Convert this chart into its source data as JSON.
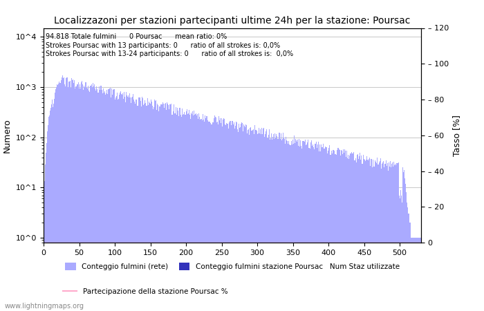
{
  "title": "Localizzazoni per stazioni partecipanti ultime 24h per la stazione: Poursac",
  "annotation_line1": "94.818 Totale fulmini      0 Poursac      mean ratio: 0%",
  "annotation_line2": "Strokes Poursac with 13 participants: 0      ratio of all strokes is: 0,0%",
  "annotation_line3": "Strokes Poursac with 13-24 participants: 0      ratio of all strokes is:  0,0%",
  "ylabel_left": "Numero",
  "ylabel_right": "Tasso [%]",
  "xlim": [
    0,
    530
  ],
  "ylim_right": [
    0,
    120
  ],
  "bar_color_light": "#aaaaff",
  "bar_color_dark": "#3333bb",
  "line_color": "#ffaacc",
  "watermark": "www.lightningmaps.org",
  "legend_label1": "Conteggio fulmini (rete)",
  "legend_label2": "Conteggio fulmini stazione Poursac",
  "legend_label3": "Partecipazione della stazione Poursac %",
  "legend_label4": "Num Staz utilizzate"
}
